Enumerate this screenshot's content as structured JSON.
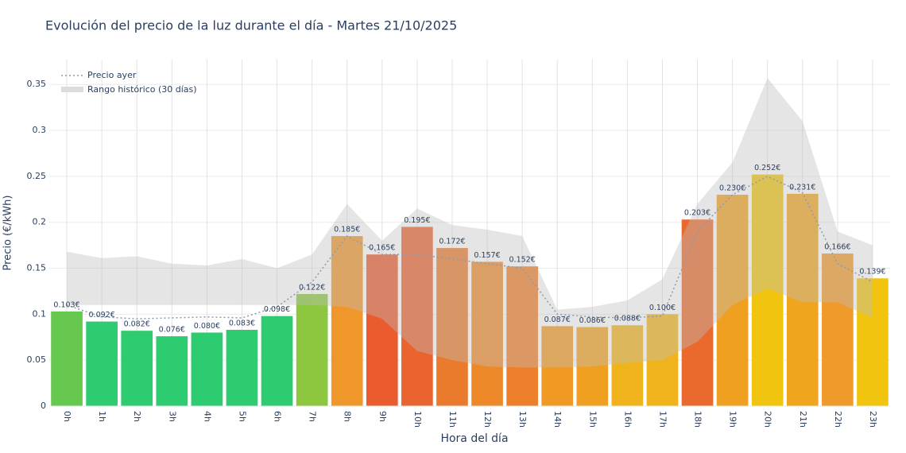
{
  "chart_data": {
    "type": "bar",
    "title": "Evolución del precio de la luz durante el día - Martes 21/10/2025",
    "x_label": "Hora del día",
    "y_label": "Precio (€/kWh)",
    "categories": [
      "0h",
      "1h",
      "2h",
      "3h",
      "4h",
      "5h",
      "6h",
      "7h",
      "8h",
      "9h",
      "10h",
      "11h",
      "12h",
      "13h",
      "14h",
      "15h",
      "16h",
      "17h",
      "18h",
      "19h",
      "20h",
      "21h",
      "22h",
      "23h"
    ],
    "values": [
      0.103,
      0.092,
      0.082,
      0.076,
      0.08,
      0.083,
      0.098,
      0.122,
      0.185,
      0.165,
      0.195,
      0.172,
      0.157,
      0.152,
      0.087,
      0.086,
      0.088,
      0.1,
      0.203,
      0.23,
      0.252,
      0.231,
      0.166,
      0.139
    ],
    "value_labels": [
      "0.103€",
      "0.092€",
      "0.082€",
      "0.076€",
      "0.080€",
      "0.083€",
      "0.098€",
      "0.122€",
      "0.185€",
      "0.165€",
      "0.195€",
      "0.172€",
      "0.157€",
      "0.152€",
      "0.087€",
      "0.086€",
      "0.088€",
      "0.100€",
      "0.203€",
      "0.230€",
      "0.252€",
      "0.231€",
      "0.166€",
      "0.139€"
    ],
    "colors": [
      "#66c84f",
      "#2ecc71",
      "#2ecc71",
      "#2ecc71",
      "#2ecc71",
      "#2ecc71",
      "#2ecc71",
      "#8dc63f",
      "#ef972b",
      "#ea5b2e",
      "#ea6430",
      "#ea7a2c",
      "#ee892a",
      "#ee7f2a",
      "#f09a24",
      "#f0a020",
      "#f1b31c",
      "#f1b31c",
      "#ea6a2e",
      "#f0a020",
      "#f1c40f",
      "#f0a51f",
      "#ef9a2a",
      "#f1c40f"
    ],
    "series": [
      {
        "name": "Precio ayer",
        "color": "#8a9bb0",
        "values": [
          0.11,
          0.097,
          0.095,
          0.096,
          0.097,
          0.096,
          0.108,
          0.135,
          0.185,
          0.165,
          0.165,
          0.16,
          0.155,
          0.15,
          0.1,
          0.097,
          0.096,
          0.098,
          0.19,
          0.23,
          0.25,
          0.232,
          0.155,
          0.135
        ]
      }
    ],
    "range": {
      "name": "Rango histórico (30 días)",
      "color": "rgba(190,190,190,0.4)",
      "upper": [
        0.168,
        0.161,
        0.163,
        0.155,
        0.153,
        0.16,
        0.15,
        0.165,
        0.22,
        0.18,
        0.215,
        0.197,
        0.192,
        0.185,
        0.105,
        0.108,
        0.115,
        0.138,
        0.22,
        0.265,
        0.357,
        0.31,
        0.19,
        0.175
      ],
      "lower": [
        0.11,
        0.11,
        0.11,
        0.11,
        0.11,
        0.11,
        0.11,
        0.11,
        0.108,
        0.095,
        0.06,
        0.05,
        0.043,
        0.042,
        0.042,
        0.043,
        0.047,
        0.05,
        0.07,
        0.11,
        0.128,
        0.113,
        0.113,
        0.096
      ]
    },
    "ylim": [
      0,
      0.377
    ],
    "yticks": [
      0,
      0.05,
      0.1,
      0.15,
      0.2,
      0.25,
      0.3,
      0.35
    ],
    "grid": true
  }
}
